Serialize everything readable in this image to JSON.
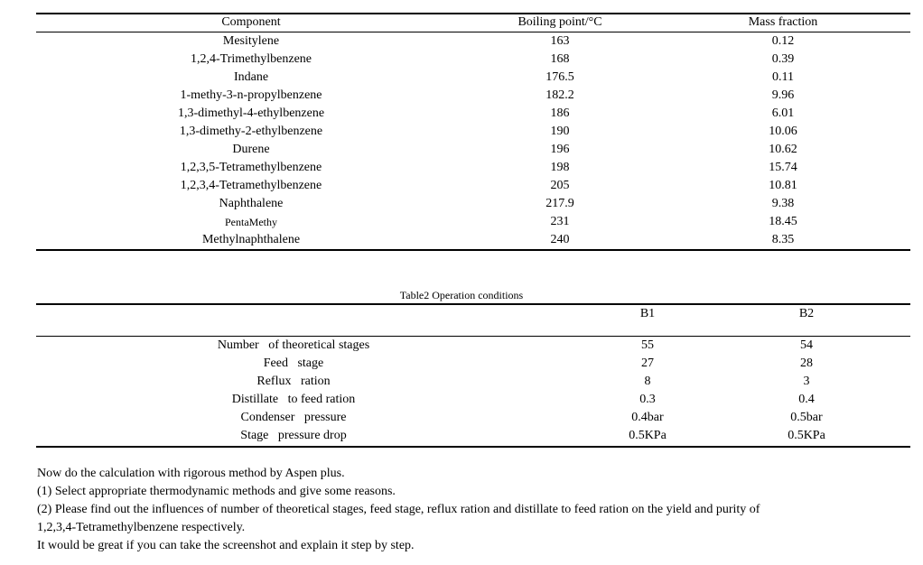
{
  "table1": {
    "headers": [
      "Component",
      "Boiling point/°C",
      "Mass fraction"
    ],
    "rows": [
      [
        "Mesitylene",
        "163",
        "0.12"
      ],
      [
        "1,2,4-Trimethylbenzene",
        "168",
        "0.39"
      ],
      [
        "Indane",
        "176.5",
        "0.11"
      ],
      [
        "1-methy-3-n-propylbenzene",
        "182.2",
        "9.96"
      ],
      [
        "1,3-dimethyl-4-ethylbenzene",
        "186",
        "6.01"
      ],
      [
        "1,3-dimethy-2-ethylbenzene",
        "190",
        "10.06"
      ],
      [
        "Durene",
        "196",
        "10.62"
      ],
      [
        "1,2,3,5-Tetramethylbenzene",
        "198",
        "15.74"
      ],
      [
        "1,2,3,4-Tetramethylbenzene",
        "205",
        "10.81"
      ],
      [
        "Naphthalene",
        "217.9",
        "9.38"
      ],
      [
        "PentaMethy",
        "231",
        "18.45"
      ],
      [
        "Methylnaphthalene",
        "240",
        "8.35"
      ]
    ]
  },
  "table2": {
    "caption": "Table2  Operation conditions",
    "headers": [
      "",
      "B1",
      "B2"
    ],
    "rows": [
      [
        "Number   of theoretical stages",
        "55",
        "54"
      ],
      [
        "Feed   stage",
        "27",
        "28"
      ],
      [
        "Reflux   ration",
        "8",
        "3"
      ],
      [
        "Distillate   to feed ration",
        "0.3",
        "0.4"
      ],
      [
        "Condenser   pressure",
        "0.4bar",
        "0.5bar"
      ],
      [
        "Stage   pressure drop",
        "0.5KPa",
        "0.5KPa"
      ]
    ]
  },
  "question": {
    "lines": [
      "Now do the calculation with rigorous method by Aspen plus.",
      "(1) Select appropriate thermodynamic methods and give some reasons.",
      "(2) Please find out the influences of number of theoretical stages, feed stage, reflux ration and distillate to feed ration on the yield and purity of",
      "1,2,3,4-Tetramethylbenzene  respectively.",
      "It would be great if you can take the screenshot and explain it step by step."
    ]
  }
}
